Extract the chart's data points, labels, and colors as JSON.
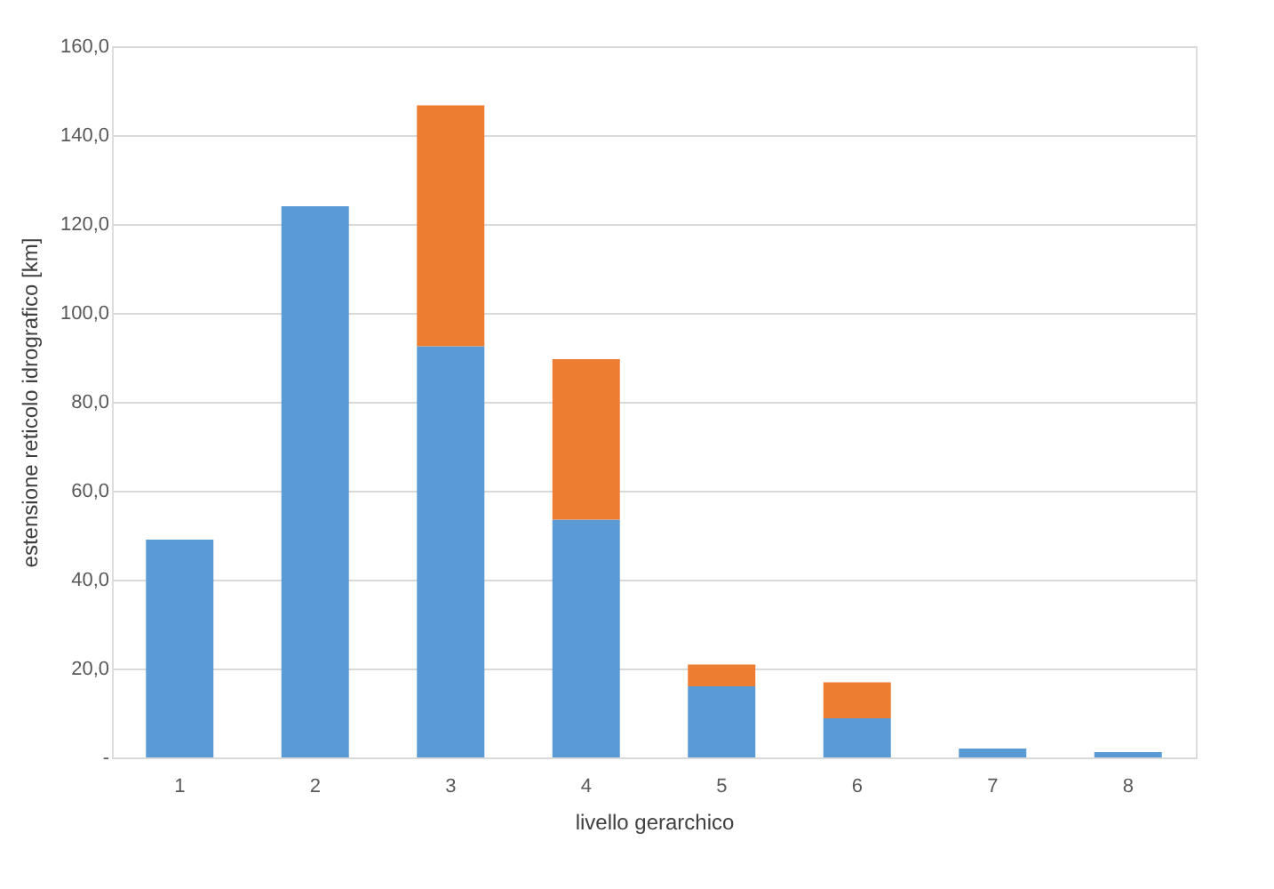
{
  "chart_data": {
    "type": "bar",
    "stacked": true,
    "xlabel": "livello gerarchico",
    "ylabel": "estensione reticolo idrografico [km]",
    "categories": [
      "1",
      "2",
      "3",
      "4",
      "5",
      "6",
      "7",
      "8"
    ],
    "series": [
      {
        "color": "#5b9bd5",
        "values": [
          49,
          124,
          92.5,
          53.5,
          16,
          8.8,
          2,
          1.2
        ]
      },
      {
        "color": "#ed7d31",
        "values": [
          0,
          0,
          54.2,
          36.1,
          4.9,
          8.1,
          0,
          0
        ]
      }
    ],
    "ylim": [
      0,
      160
    ],
    "yticks": [
      {
        "value": 0,
        "label": "-"
      },
      {
        "value": 20,
        "label": "20,0"
      },
      {
        "value": 40,
        "label": "40,0"
      },
      {
        "value": 60,
        "label": "60,0"
      },
      {
        "value": 80,
        "label": "80,0"
      },
      {
        "value": 100,
        "label": "100,0"
      },
      {
        "value": 120,
        "label": "120,0"
      },
      {
        "value": 140,
        "label": "140,0"
      },
      {
        "value": 160,
        "label": "160,0"
      }
    ],
    "grid": "y",
    "legend": false
  }
}
